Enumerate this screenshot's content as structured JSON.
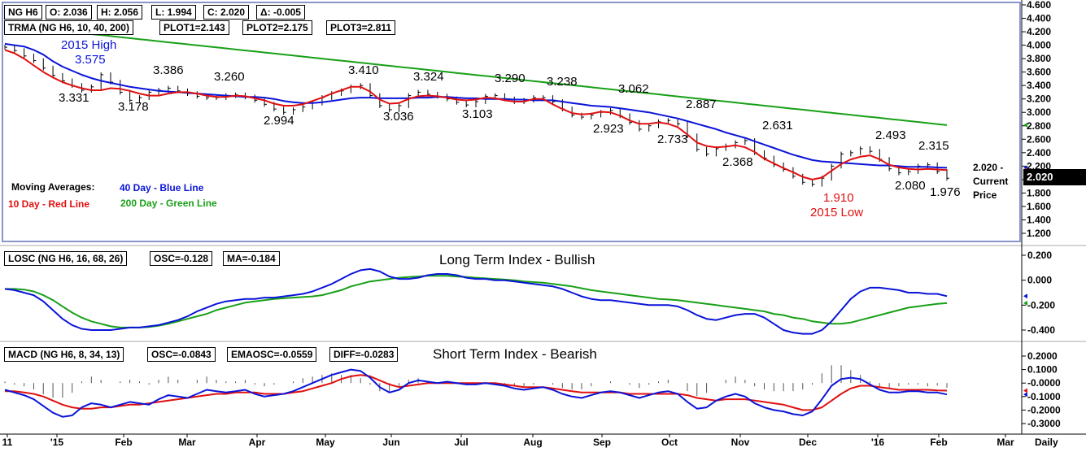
{
  "colors": {
    "blue": "#0a14d8",
    "red": "#e01010",
    "green": "#18a018",
    "black": "#000000",
    "frame": "#8a94c8"
  },
  "headers": {
    "ohlc": [
      "NG H6",
      "O: 2.036",
      "H: 2.056",
      "L: 1.994",
      "C: 2.020",
      "Δ: -0.005"
    ],
    "trma": [
      "TRMA (NG H6, 10, 40, 200)",
      "PLOT1=2.143",
      "PLOT2=2.175",
      "PLOT3=2.811"
    ],
    "losc": [
      "LOSC (NG H6, 16, 68, 26)",
      "OSC=-0.128",
      "MA=-0.184"
    ],
    "macd": [
      "MACD (NG H6, 8, 34, 13)",
      "OSC=-0.0843",
      "EMAOSC=-0.0559",
      "DIFF=-0.0283"
    ]
  },
  "titles": {
    "losc": "Long Term Index - Bullish",
    "macd": "Short Term Index - Bearish"
  },
  "legend": {
    "heading": "Moving Averages:",
    "blue": "40 Day - Blue Line",
    "red": "10 Day - Red Line",
    "green": "200 Day - Green Line"
  },
  "current_price": {
    "value": "2.020",
    "label_value": "2.020 -",
    "label_1": "Current",
    "label_2": "Price"
  },
  "time_axis": [
    "11",
    "'15",
    "Feb",
    "Mar",
    "Apr",
    "May",
    "Jun",
    "Jul",
    "Aug",
    "Sep",
    "Oct",
    "Nov",
    "Dec",
    "'16",
    "Feb",
    "Mar",
    "Daily"
  ],
  "chart_data": [
    {
      "type": "line",
      "panel": "price",
      "ylim": [
        1.1,
        4.6
      ],
      "y_ticks": [
        "4.600",
        "4.400",
        "4.200",
        "4.000",
        "3.800",
        "3.600",
        "3.400",
        "3.200",
        "3.000",
        "2.800",
        "2.600",
        "2.400",
        "2.200",
        "2.000",
        "1.800",
        "1.600",
        "1.400",
        "1.200"
      ],
      "annotations": [
        {
          "text": "2015 High",
          "color": "blue",
          "x": "Jan",
          "y": 3.575
        },
        {
          "text": "3.575",
          "color": "blue",
          "x": "Jan",
          "y": 3.575
        },
        {
          "text": "3.331",
          "x": "Jan",
          "y": 3.331
        },
        {
          "text": "3.178",
          "x": "Feb",
          "y": 3.178
        },
        {
          "text": "3.386",
          "x": "Feb",
          "y": 3.386
        },
        {
          "text": "3.260",
          "x": "Apr",
          "y": 3.26
        },
        {
          "text": "2.994",
          "x": "Apr",
          "y": 2.994
        },
        {
          "text": "3.410",
          "x": "May",
          "y": 3.41
        },
        {
          "text": "3.036",
          "x": "Jun",
          "y": 3.036
        },
        {
          "text": "3.324",
          "x": "Jun",
          "y": 3.324
        },
        {
          "text": "3.103",
          "x": "Jul",
          "y": 3.103
        },
        {
          "text": "3.290",
          "x": "Jul",
          "y": 3.29
        },
        {
          "text": "3.238",
          "x": "Aug",
          "y": 3.238
        },
        {
          "text": "2.923",
          "x": "Aug",
          "y": 2.923
        },
        {
          "text": "3.062",
          "x": "Sep",
          "y": 3.062
        },
        {
          "text": "2.733",
          "x": "Oct",
          "y": 2.733
        },
        {
          "text": "2.887",
          "x": "Oct",
          "y": 2.887
        },
        {
          "text": "2.368",
          "x": "Nov",
          "y": 2.368
        },
        {
          "text": "2.631",
          "x": "Nov",
          "y": 2.631
        },
        {
          "text": "1.910",
          "color": "red",
          "x": "Dec",
          "y": 1.91
        },
        {
          "text": "2015 Low",
          "color": "red",
          "x": "Dec",
          "y": 1.91
        },
        {
          "text": "2.493",
          "x": "Jan",
          "y": 2.493
        },
        {
          "text": "2.315",
          "x": "Jan",
          "y": 2.315
        },
        {
          "text": "2.080",
          "x": "Jan",
          "y": 2.08
        },
        {
          "text": "1.976",
          "x": "Feb",
          "y": 1.976
        }
      ],
      "series": [
        {
          "name": "10 Day",
          "color": "red",
          "values": [
            3.93,
            3.88,
            3.8,
            3.7,
            3.6,
            3.52,
            3.45,
            3.4,
            3.36,
            3.33,
            3.33,
            3.36,
            3.35,
            3.32,
            3.28,
            3.25,
            3.25,
            3.28,
            3.3,
            3.3,
            3.28,
            3.25,
            3.23,
            3.23,
            3.25,
            3.24,
            3.21,
            3.18,
            3.13,
            3.1,
            3.1,
            3.12,
            3.17,
            3.22,
            3.28,
            3.33,
            3.38,
            3.38,
            3.31,
            3.19,
            3.13,
            3.14,
            3.2,
            3.24,
            3.25,
            3.24,
            3.22,
            3.19,
            3.18,
            3.19,
            3.22,
            3.21,
            3.18,
            3.16,
            3.16,
            3.2,
            3.2,
            3.12,
            3.05,
            2.99,
            2.97,
            2.98,
            3.01,
            3.0,
            2.95,
            2.88,
            2.83,
            2.83,
            2.85,
            2.83,
            2.78,
            2.67,
            2.55,
            2.5,
            2.48,
            2.49,
            2.51,
            2.48,
            2.41,
            2.31,
            2.24,
            2.17,
            2.11,
            2.04,
            2.0,
            2.03,
            2.13,
            2.23,
            2.3,
            2.34,
            2.36,
            2.3,
            2.22,
            2.18,
            2.16,
            2.15,
            2.16,
            2.15,
            2.14
          ]
        },
        {
          "name": "40 Day",
          "color": "blue",
          "values": [
            4.02,
            4.0,
            3.98,
            3.93,
            3.86,
            3.76,
            3.68,
            3.62,
            3.56,
            3.51,
            3.47,
            3.44,
            3.41,
            3.38,
            3.36,
            3.34,
            3.32,
            3.31,
            3.3,
            3.29,
            3.28,
            3.27,
            3.26,
            3.25,
            3.24,
            3.23,
            3.23,
            3.22,
            3.2,
            3.17,
            3.15,
            3.14,
            3.14,
            3.15,
            3.17,
            3.19,
            3.21,
            3.22,
            3.22,
            3.21,
            3.21,
            3.21,
            3.21,
            3.22,
            3.22,
            3.23,
            3.23,
            3.22,
            3.21,
            3.21,
            3.2,
            3.2,
            3.2,
            3.19,
            3.19,
            3.18,
            3.18,
            3.18,
            3.16,
            3.14,
            3.12,
            3.1,
            3.09,
            3.08,
            3.06,
            3.04,
            3.02,
            3.0,
            2.97,
            2.94,
            2.91,
            2.87,
            2.83,
            2.79,
            2.75,
            2.7,
            2.66,
            2.62,
            2.57,
            2.52,
            2.47,
            2.42,
            2.37,
            2.33,
            2.29,
            2.27,
            2.26,
            2.25,
            2.24,
            2.23,
            2.22,
            2.21,
            2.21,
            2.2,
            2.19,
            2.19,
            2.19,
            2.18,
            2.175
          ]
        },
        {
          "name": "200 Day",
          "color": "green",
          "start": 4.22,
          "end": 2.811,
          "end_index": 98
        }
      ],
      "price_bars": {
        "color": "black",
        "closes": [
          3.97,
          3.92,
          3.84,
          3.77,
          3.66,
          3.55,
          3.47,
          3.4,
          3.33,
          3.38,
          3.56,
          3.45,
          3.3,
          3.18,
          3.22,
          3.3,
          3.33,
          3.36,
          3.32,
          3.28,
          3.24,
          3.22,
          3.22,
          3.25,
          3.26,
          3.23,
          3.18,
          3.12,
          3.05,
          3.0,
          3.04,
          3.08,
          3.14,
          3.22,
          3.28,
          3.32,
          3.38,
          3.4,
          3.25,
          3.1,
          3.04,
          3.1,
          3.25,
          3.3,
          3.27,
          3.24,
          3.2,
          3.15,
          3.11,
          3.16,
          3.24,
          3.25,
          3.2,
          3.16,
          3.18,
          3.22,
          3.22,
          3.16,
          3.05,
          2.96,
          2.93,
          2.96,
          3.0,
          3.03,
          2.95,
          2.85,
          2.75,
          2.8,
          2.86,
          2.88,
          2.83,
          2.65,
          2.45,
          2.38,
          2.46,
          2.5,
          2.55,
          2.58,
          2.4,
          2.32,
          2.22,
          2.15,
          2.05,
          1.96,
          1.93,
          2.02,
          2.2,
          2.38,
          2.4,
          2.46,
          2.42,
          2.3,
          2.16,
          2.1,
          2.12,
          2.2,
          2.22,
          2.12,
          2.02
        ]
      }
    },
    {
      "type": "line",
      "panel": "losc",
      "ylim": [
        -0.5,
        0.3
      ],
      "y_ticks": [
        "0.200",
        "0.000",
        "-0.200",
        "-0.400"
      ],
      "series": [
        {
          "name": "OSC",
          "color": "blue",
          "values": [
            -0.07,
            -0.08,
            -0.1,
            -0.12,
            -0.17,
            -0.24,
            -0.31,
            -0.36,
            -0.39,
            -0.4,
            -0.4,
            -0.4,
            -0.39,
            -0.38,
            -0.38,
            -0.37,
            -0.36,
            -0.34,
            -0.32,
            -0.29,
            -0.25,
            -0.22,
            -0.19,
            -0.17,
            -0.16,
            -0.15,
            -0.15,
            -0.14,
            -0.14,
            -0.13,
            -0.12,
            -0.11,
            -0.09,
            -0.06,
            -0.03,
            0.01,
            0.05,
            0.08,
            0.09,
            0.07,
            0.03,
            0.01,
            0.01,
            0.02,
            0.04,
            0.05,
            0.05,
            0.04,
            0.02,
            0.01,
            0.01,
            0.0,
            0.0,
            -0.01,
            -0.02,
            -0.03,
            -0.04,
            -0.05,
            -0.07,
            -0.1,
            -0.13,
            -0.15,
            -0.16,
            -0.16,
            -0.17,
            -0.18,
            -0.19,
            -0.2,
            -0.2,
            -0.2,
            -0.21,
            -0.24,
            -0.28,
            -0.31,
            -0.32,
            -0.3,
            -0.28,
            -0.27,
            -0.27,
            -0.3,
            -0.35,
            -0.4,
            -0.42,
            -0.43,
            -0.43,
            -0.4,
            -0.33,
            -0.24,
            -0.15,
            -0.09,
            -0.06,
            -0.06,
            -0.07,
            -0.08,
            -0.1,
            -0.1,
            -0.11,
            -0.11,
            -0.128
          ]
        },
        {
          "name": "MA",
          "color": "green",
          "values": [
            -0.07,
            -0.07,
            -0.075,
            -0.09,
            -0.12,
            -0.16,
            -0.21,
            -0.26,
            -0.3,
            -0.33,
            -0.35,
            -0.37,
            -0.38,
            -0.38,
            -0.38,
            -0.375,
            -0.365,
            -0.35,
            -0.33,
            -0.31,
            -0.29,
            -0.27,
            -0.24,
            -0.22,
            -0.2,
            -0.18,
            -0.17,
            -0.16,
            -0.15,
            -0.145,
            -0.14,
            -0.135,
            -0.13,
            -0.12,
            -0.1,
            -0.08,
            -0.05,
            -0.03,
            -0.01,
            0.0,
            0.01,
            0.02,
            0.025,
            0.03,
            0.035,
            0.035,
            0.035,
            0.03,
            0.025,
            0.02,
            0.015,
            0.01,
            0.005,
            0.0,
            -0.01,
            -0.015,
            -0.02,
            -0.03,
            -0.04,
            -0.05,
            -0.065,
            -0.08,
            -0.09,
            -0.1,
            -0.11,
            -0.12,
            -0.13,
            -0.14,
            -0.15,
            -0.155,
            -0.16,
            -0.17,
            -0.18,
            -0.19,
            -0.2,
            -0.21,
            -0.22,
            -0.23,
            -0.24,
            -0.25,
            -0.27,
            -0.28,
            -0.3,
            -0.31,
            -0.33,
            -0.34,
            -0.35,
            -0.35,
            -0.34,
            -0.32,
            -0.3,
            -0.28,
            -0.26,
            -0.24,
            -0.22,
            -0.21,
            -0.2,
            -0.19,
            -0.184
          ]
        }
      ]
    },
    {
      "type": "line",
      "panel": "macd",
      "ylim": [
        -0.32,
        0.24
      ],
      "y_ticks": [
        "0.2000",
        "0.1000",
        "-0.0000",
        "-0.1000",
        "-0.2000",
        "-0.3000"
      ],
      "series": [
        {
          "name": "MACD",
          "color": "blue",
          "values": [
            -0.05,
            -0.07,
            -0.09,
            -0.12,
            -0.17,
            -0.22,
            -0.25,
            -0.24,
            -0.18,
            -0.15,
            -0.16,
            -0.18,
            -0.16,
            -0.14,
            -0.15,
            -0.16,
            -0.12,
            -0.09,
            -0.1,
            -0.11,
            -0.08,
            -0.05,
            -0.06,
            -0.07,
            -0.06,
            -0.05,
            -0.08,
            -0.1,
            -0.09,
            -0.08,
            -0.06,
            -0.03,
            0.0,
            0.03,
            0.06,
            0.08,
            0.1,
            0.09,
            0.04,
            -0.03,
            -0.07,
            -0.05,
            0.0,
            0.02,
            0.01,
            0.0,
            0.01,
            0.0,
            -0.01,
            -0.01,
            0.0,
            -0.01,
            -0.02,
            -0.04,
            -0.05,
            -0.04,
            -0.03,
            -0.05,
            -0.08,
            -0.1,
            -0.11,
            -0.09,
            -0.07,
            -0.06,
            -0.07,
            -0.09,
            -0.11,
            -0.09,
            -0.07,
            -0.06,
            -0.08,
            -0.14,
            -0.19,
            -0.18,
            -0.13,
            -0.1,
            -0.08,
            -0.1,
            -0.15,
            -0.18,
            -0.2,
            -0.21,
            -0.23,
            -0.24,
            -0.21,
            -0.12,
            -0.02,
            0.03,
            0.04,
            0.03,
            -0.01,
            -0.05,
            -0.07,
            -0.07,
            -0.06,
            -0.06,
            -0.07,
            -0.07,
            -0.0843
          ]
        },
        {
          "name": "EMAOSC",
          "color": "red",
          "values": [
            -0.06,
            -0.06,
            -0.07,
            -0.08,
            -0.1,
            -0.13,
            -0.16,
            -0.18,
            -0.19,
            -0.19,
            -0.18,
            -0.18,
            -0.17,
            -0.16,
            -0.16,
            -0.15,
            -0.14,
            -0.13,
            -0.12,
            -0.11,
            -0.1,
            -0.09,
            -0.08,
            -0.08,
            -0.07,
            -0.07,
            -0.07,
            -0.08,
            -0.08,
            -0.08,
            -0.07,
            -0.06,
            -0.04,
            -0.02,
            0.0,
            0.03,
            0.05,
            0.06,
            0.05,
            0.02,
            -0.01,
            -0.03,
            -0.02,
            -0.01,
            0.0,
            0.0,
            0.0,
            0.0,
            0.0,
            0.0,
            0.0,
            0.0,
            -0.01,
            -0.02,
            -0.03,
            -0.03,
            -0.03,
            -0.04,
            -0.05,
            -0.06,
            -0.07,
            -0.07,
            -0.07,
            -0.07,
            -0.07,
            -0.08,
            -0.08,
            -0.08,
            -0.08,
            -0.08,
            -0.08,
            -0.09,
            -0.11,
            -0.12,
            -0.13,
            -0.12,
            -0.12,
            -0.12,
            -0.13,
            -0.14,
            -0.15,
            -0.16,
            -0.18,
            -0.2,
            -0.2,
            -0.18,
            -0.13,
            -0.08,
            -0.04,
            -0.02,
            -0.02,
            -0.03,
            -0.04,
            -0.05,
            -0.05,
            -0.05,
            -0.05,
            -0.055,
            -0.0559
          ]
        }
      ]
    }
  ]
}
